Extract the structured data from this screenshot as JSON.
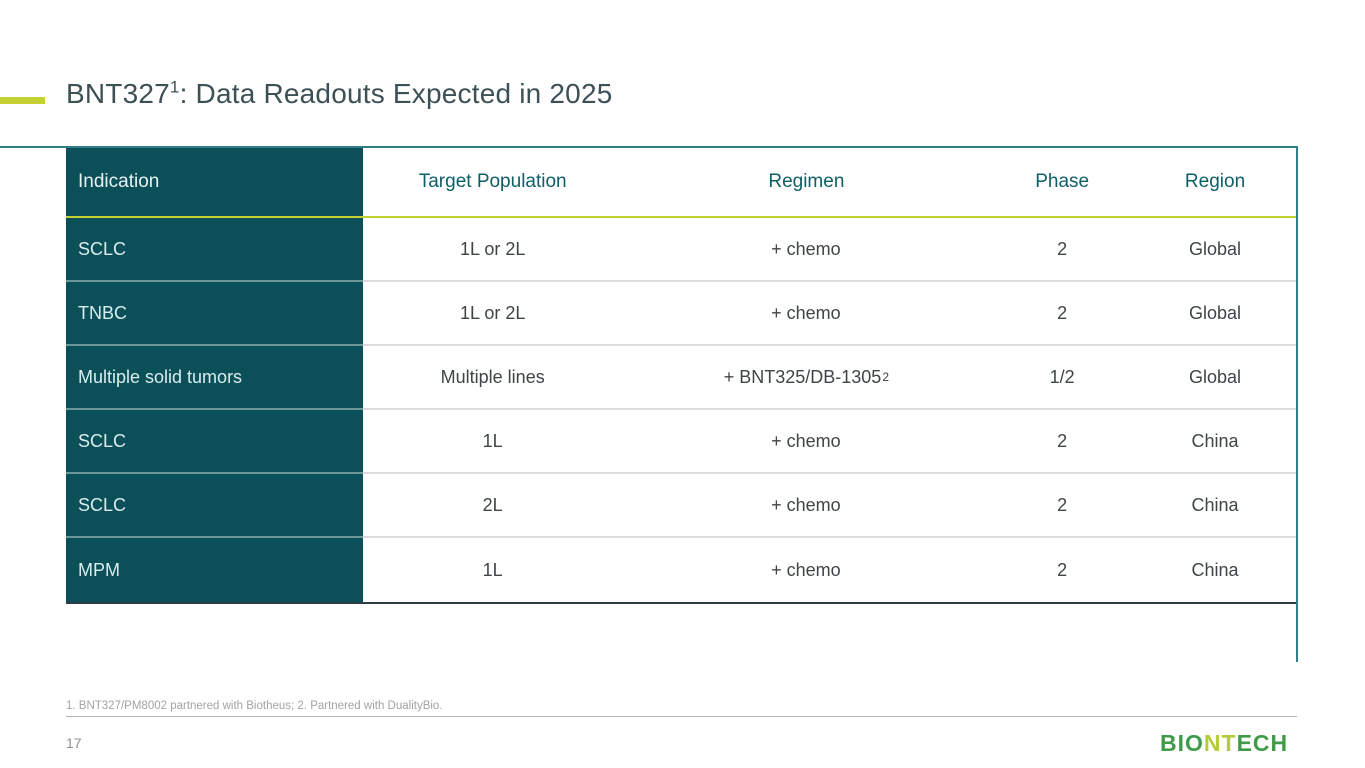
{
  "title": {
    "prefix": "BNT327",
    "sup": "1",
    "suffix": ": Data Readouts Expected in 2025"
  },
  "table": {
    "headers": [
      "Indication",
      "Target Population",
      "Regimen",
      "Phase",
      "Region"
    ],
    "rows": [
      {
        "indication": "SCLC",
        "target_population": "1L or 2L",
        "regimen": "+ chemo",
        "regimen_sup": "",
        "phase": "2",
        "region": "Global"
      },
      {
        "indication": "TNBC",
        "target_population": "1L or 2L",
        "regimen": "+ chemo",
        "regimen_sup": "",
        "phase": "2",
        "region": "Global"
      },
      {
        "indication": "Multiple solid tumors",
        "target_population": "Multiple lines",
        "regimen": "+ BNT325/DB-1305",
        "regimen_sup": "2",
        "phase": "1/2",
        "region": "Global"
      },
      {
        "indication": "SCLC",
        "target_population": "1L",
        "regimen": "+ chemo",
        "regimen_sup": "",
        "phase": "2",
        "region": "China"
      },
      {
        "indication": "SCLC",
        "target_population": "2L",
        "regimen": "+ chemo",
        "regimen_sup": "",
        "phase": "2",
        "region": "China"
      },
      {
        "indication": "MPM",
        "target_population": "1L",
        "regimen": "+ chemo",
        "regimen_sup": "",
        "phase": "2",
        "region": "China"
      }
    ]
  },
  "footer": {
    "footnote": "1. BNT327/PM8002 partnered with Biotheus; 2. Partnered with DualityBio.",
    "page_number": "17",
    "logo": {
      "part1": "BIO",
      "part2": "NT",
      "part3": "ECH"
    }
  },
  "colors": {
    "teal_dark": "#0b4f58",
    "teal_border": "#2f7e88",
    "teal_header_text": "#0d5f66",
    "accent_lime": "#c3d230",
    "title_color": "#3d5056",
    "body_text": "#3f4547",
    "light_cell_text": "#d9edef",
    "divider_gray": "#dcdcdc",
    "table_bottom": "#2e3d43",
    "footnote_gray": "#a3a3a3",
    "page_num_gray": "#8f8f8f",
    "logo_green": "#3f9b47",
    "logo_lime": "#b5cc34"
  }
}
